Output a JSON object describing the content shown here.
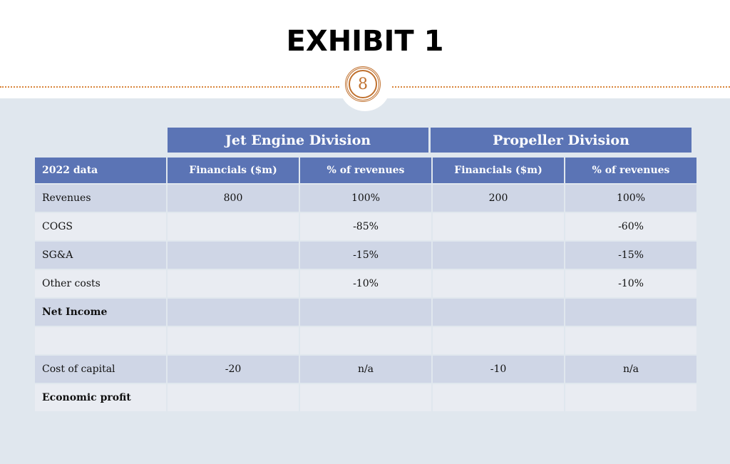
{
  "title": "EXHIBIT 1",
  "page_number": "8",
  "divisions": [
    "Jet Engine Division",
    "Propeller Division"
  ],
  "columns": [
    "2022 data",
    "Financials ($m)",
    "% of revenues",
    "Financials ($m)",
    "% of revenues"
  ],
  "rows": [
    {
      "label": "Revenues",
      "bold": false,
      "cells": [
        "800",
        "100%",
        "200",
        "100%"
      ]
    },
    {
      "label": "COGS",
      "bold": false,
      "cells": [
        "",
        "-85%",
        "",
        "-60%"
      ]
    },
    {
      "label": "SG&A",
      "bold": false,
      "cells": [
        "",
        "-15%",
        "",
        "-15%"
      ]
    },
    {
      "label": "Other costs",
      "bold": false,
      "cells": [
        "",
        "-10%",
        "",
        "-10%"
      ]
    },
    {
      "label": "Net Income",
      "bold": true,
      "cells": [
        "",
        "",
        "",
        ""
      ]
    },
    {
      "label": "",
      "bold": false,
      "cells": [
        "",
        "",
        "",
        ""
      ]
    },
    {
      "label": "Cost of capital",
      "bold": false,
      "cells": [
        "-20",
        "n/a",
        "-10",
        "n/a"
      ]
    },
    {
      "label": "Economic profit",
      "bold": true,
      "cells": [
        "",
        "",
        "",
        ""
      ]
    }
  ],
  "colors": {
    "header_fill": "#5b74b5",
    "row_dark": "#cfd6e6",
    "row_light": "#e9ecf2",
    "panel": "#e0e7ee",
    "accent": "#c0712f"
  }
}
